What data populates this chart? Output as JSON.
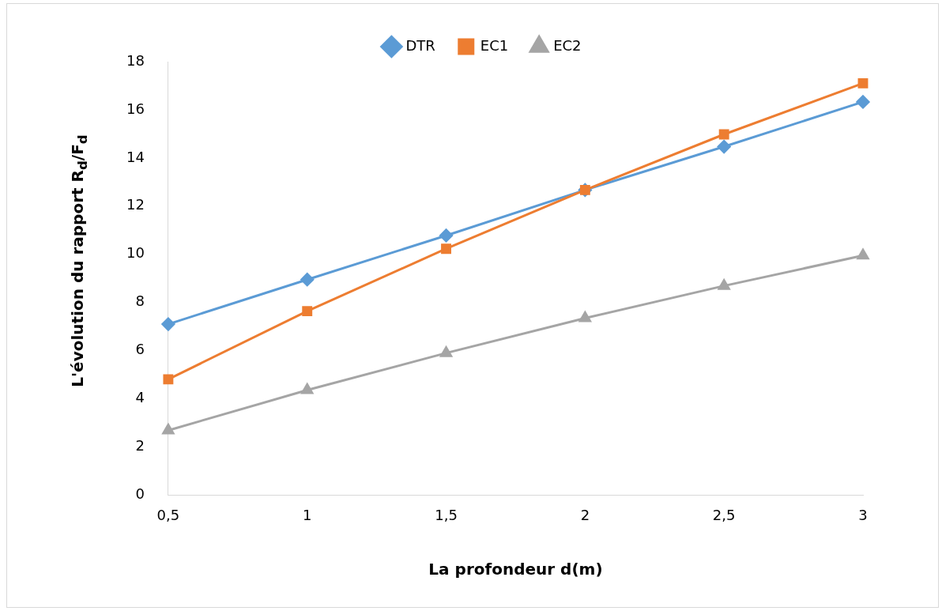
{
  "chart_data": {
    "type": "line",
    "xlabel": "La profondeur d(m)",
    "ylabel": "L'évolution du rapport R$_{d}$/F$_{d}$",
    "categories": [
      "0,5",
      "1",
      "1,5",
      "2",
      "2,5",
      "3"
    ],
    "series": [
      {
        "name": "DTR",
        "color": "#5b9bd5",
        "marker": "diamond",
        "values": [
          7.1,
          8.95,
          10.78,
          12.67,
          14.47,
          16.33
        ]
      },
      {
        "name": "EC1",
        "color": "#ed7d31",
        "marker": "square",
        "values": [
          4.81,
          7.64,
          10.23,
          12.67,
          14.98,
          17.1
        ]
      },
      {
        "name": "EC2",
        "color": "#a5a5a5",
        "marker": "triangle",
        "values": [
          2.69,
          4.36,
          5.9,
          7.35,
          8.69,
          9.95
        ]
      }
    ],
    "ylim": [
      0,
      18
    ],
    "yticks": [
      0,
      2,
      4,
      6,
      8,
      10,
      12,
      14,
      16,
      18
    ],
    "grid": false,
    "legend": "top",
    "line_style": "solid"
  }
}
